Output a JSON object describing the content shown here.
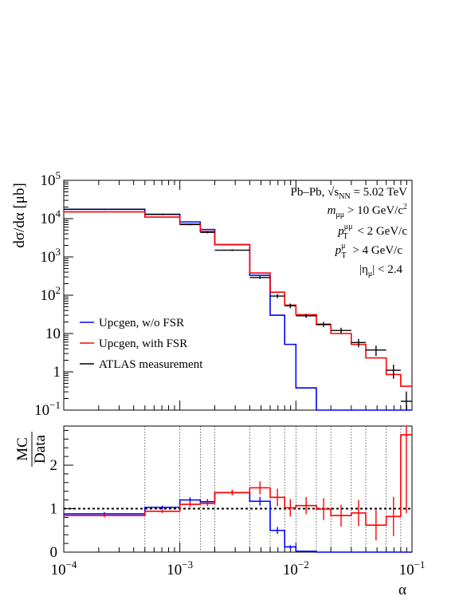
{
  "chart_data": [
    {
      "panel": "main",
      "type": "histogram",
      "title": "",
      "ylabel": "dσ/dα [μb]",
      "yscale": "log",
      "ylim": [
        0.1,
        100000
      ],
      "xscale": "log",
      "xlim": [
        0.0001,
        0.1
      ],
      "ytick_labels": [
        {
          "value": 0.1,
          "base": "10",
          "exp": "−1"
        },
        {
          "value": 1,
          "base": "1",
          "exp": ""
        },
        {
          "value": 10,
          "base": "10",
          "exp": ""
        },
        {
          "value": 100,
          "base": "10",
          "exp": "2"
        },
        {
          "value": 1000,
          "base": "10",
          "exp": "3"
        },
        {
          "value": 10000,
          "base": "10",
          "exp": "4"
        },
        {
          "value": 100000,
          "base": "10",
          "exp": "5"
        }
      ],
      "bin_edges": [
        0.0001,
        0.0005,
        0.001,
        0.0015,
        0.002,
        0.004,
        0.006,
        0.008,
        0.01,
        0.015,
        0.02,
        0.03,
        0.04,
        0.06,
        0.08,
        0.1
      ],
      "series": [
        {
          "name": "Upcgen, w/o FSR",
          "color": "#0000ff",
          "style": "step",
          "values": [
            17500,
            13000,
            8200,
            5200,
            2100,
            330,
            30,
            5.2,
            0.38,
            0.1,
            0.1,
            0.1,
            0.1,
            0.1,
            0.1
          ]
        },
        {
          "name": "Upcgen, with FSR",
          "color": "#ff0000",
          "style": "step",
          "values": [
            15000,
            11000,
            7200,
            4600,
            2100,
            380,
            120,
            55,
            31,
            17,
            10,
            5.2,
            2.3,
            0.85,
            0.42
          ]
        },
        {
          "name": "ATLAS measurement",
          "color": "#000000",
          "style": "points",
          "values": [
            17500,
            12800,
            7000,
            4400,
            1500,
            290,
            95,
            53,
            29,
            17.5,
            12,
            5.8,
            3.7,
            1.1,
            0.17
          ],
          "yerr_rel": [
            0.04,
            0.04,
            0.05,
            0.06,
            0.05,
            0.08,
            0.12,
            0.14,
            0.12,
            0.15,
            0.18,
            0.25,
            0.3,
            0.4,
            0.8
          ]
        }
      ],
      "annotations": {
        "system": "Pb–Pb, √s",
        "system_sub": "NN",
        "system_val": "= 5.02 TeV",
        "mass_m": "m",
        "mass_sub": "μμ",
        "mass_val": "> 10 GeV/c",
        "mass_sup": "2",
        "pt_pair_p": "p",
        "pt_pair_sub": "T",
        "pt_pair_sup": "μμ",
        "pt_pair_val": "< 2 GeV/c",
        "pt_mu_p": "p",
        "pt_mu_sub": "T",
        "pt_mu_sup": "μ",
        "pt_mu_val": "> 4 GeV/c",
        "eta_text": "|η",
        "eta_sub": "μ",
        "eta_val": "| < 2.4"
      }
    },
    {
      "panel": "ratio",
      "type": "histogram",
      "ylabel_num": "MC",
      "ylabel_den": "Data",
      "ylim": [
        0,
        2.9
      ],
      "yticks": [
        0,
        1,
        2
      ],
      "xlabel": "α",
      "xscale": "log",
      "xlim": [
        0.0001,
        0.1
      ],
      "xtick_labels": [
        {
          "value": 0.0001,
          "base": "10",
          "exp": "−4"
        },
        {
          "value": 0.001,
          "base": "10",
          "exp": "−3"
        },
        {
          "value": 0.01,
          "base": "10",
          "exp": "−2"
        },
        {
          "value": 0.1,
          "base": "10",
          "exp": "−1"
        }
      ],
      "reference_line": 1,
      "bin_edges": [
        0.0001,
        0.0005,
        0.001,
        0.0015,
        0.002,
        0.004,
        0.006,
        0.008,
        0.01,
        0.015,
        0.02,
        0.03,
        0.04,
        0.06,
        0.08,
        0.1
      ],
      "series": [
        {
          "name": "Upcgen, w/o FSR",
          "color": "#0000ff",
          "values": [
            0.88,
            1.03,
            1.2,
            1.16,
            1.37,
            1.17,
            0.5,
            0.12,
            0.02,
            0.0,
            0.0,
            0.0,
            0.0,
            0.0,
            0.0
          ],
          "errors": [
            0.04,
            0.04,
            0.06,
            0.06,
            0.06,
            0.1,
            0.08,
            0.04,
            0.0,
            0.0,
            0.0,
            0.0,
            0.0,
            0.0,
            0.0
          ]
        },
        {
          "name": "Upcgen, with FSR",
          "color": "#ff0000",
          "values": [
            0.84,
            0.94,
            1.1,
            1.12,
            1.37,
            1.48,
            1.26,
            1.02,
            1.07,
            0.99,
            0.84,
            0.9,
            0.62,
            0.82,
            2.7
          ],
          "errors": [
            0.04,
            0.04,
            0.06,
            0.06,
            0.06,
            0.15,
            0.2,
            0.2,
            0.2,
            0.25,
            0.25,
            0.3,
            0.35,
            0.45,
            1.8
          ]
        }
      ]
    }
  ],
  "legend": {
    "items": [
      "Upcgen, w/o FSR",
      "Upcgen, with FSR",
      "ATLAS measurement"
    ],
    "colors": [
      "#0000ff",
      "#ff0000",
      "#000000"
    ]
  }
}
